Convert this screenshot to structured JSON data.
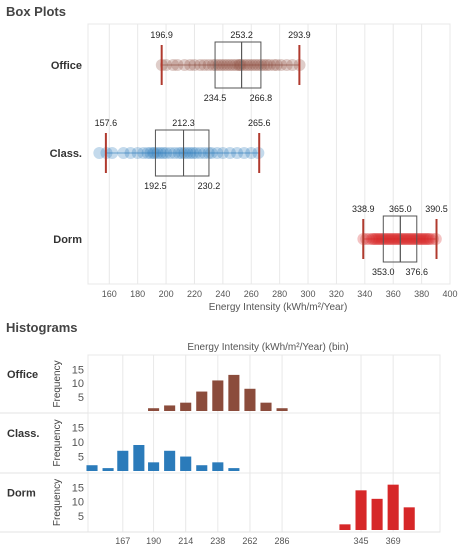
{
  "box_section": {
    "title": "Box Plots",
    "xlabel": "Energy Intensity (kWh/m²/Year)"
  },
  "hist_section": {
    "title": "Histograms",
    "xlabel": "Energy Intensity (kWh/m²/Year) (bin)",
    "ylabel": "Frequency"
  },
  "colors": {
    "Office": "#8b4c3c",
    "Class.": "#2b7bba",
    "Dorm": "#d62728",
    "whisker": "#b03a2e",
    "grid": "#e8e8e8"
  },
  "chart_data": [
    {
      "type": "box",
      "title": "Box Plots",
      "xlabel": "Energy Intensity (kWh/m²/Year)",
      "xlim": [
        145,
        400
      ],
      "xticks": [
        160,
        180,
        200,
        220,
        240,
        260,
        280,
        300,
        320,
        340,
        360,
        380,
        400
      ],
      "series": [
        {
          "name": "Office",
          "min": 196.9,
          "q1": 234.5,
          "median": 253.2,
          "q3": 266.8,
          "max": 293.9,
          "labels": {
            "min": "196.9",
            "q1": "234.5",
            "median": "253.2",
            "q3": "266.8",
            "max": "293.9"
          },
          "points": [
            197,
            200,
            205,
            208,
            213,
            217,
            220,
            224,
            227,
            230,
            233,
            235,
            237,
            239,
            241,
            243,
            245,
            247,
            249,
            251,
            252,
            253,
            255,
            257,
            259,
            261,
            263,
            265,
            267,
            269,
            271,
            273,
            276,
            278,
            281,
            285,
            289,
            294
          ]
        },
        {
          "name": "Class.",
          "min": 157.6,
          "q1": 192.5,
          "median": 212.3,
          "q3": 230.2,
          "max": 265.6,
          "labels": {
            "min": "157.6",
            "q1": "192.5",
            "median": "212.3",
            "q3": "230.2",
            "max": "265.6"
          },
          "points": [
            153,
            158,
            162,
            170,
            175,
            180,
            184,
            187,
            189,
            191,
            192,
            194,
            196,
            198,
            200,
            203,
            206,
            209,
            211,
            213,
            215,
            217,
            219,
            221,
            224,
            227,
            230,
            232,
            236,
            240,
            245,
            250,
            255,
            260,
            265
          ]
        },
        {
          "name": "Dorm",
          "min": 338.9,
          "q1": 353.0,
          "median": 365.0,
          "q3": 376.6,
          "max": 390.5,
          "labels": {
            "min": "338.9",
            "q1": "353.0",
            "median": "365.0",
            "q3": "376.6",
            "max": "390.5"
          },
          "points": [
            339,
            341,
            343,
            345,
            346,
            347,
            348,
            349,
            350,
            351,
            352,
            353,
            354,
            355,
            356,
            357,
            358,
            359,
            360,
            361,
            362,
            363,
            364,
            365,
            366,
            367,
            368,
            369,
            370,
            371,
            372,
            373,
            374,
            375,
            376,
            377,
            378,
            379,
            380,
            381,
            382,
            383,
            384,
            385,
            386,
            388,
            390
          ]
        }
      ]
    },
    {
      "type": "bar",
      "title": "Histograms",
      "xlabel": "Energy Intensity (kWh/m²/Year) (bin)",
      "ylabel": "Frequency",
      "xlim": [
        141,
        404
      ],
      "bin_width": 11.5,
      "xticks": [
        167,
        190,
        214,
        238,
        262,
        286,
        345,
        369
      ],
      "yticks": [
        5,
        10,
        15
      ],
      "ylim": [
        0,
        18
      ],
      "series": [
        {
          "name": "Office",
          "bins": [
            190,
            202,
            214,
            226,
            238,
            250,
            262,
            274,
            286
          ],
          "values": [
            1,
            2,
            3,
            7,
            11,
            13,
            8,
            3,
            1
          ]
        },
        {
          "name": "Class.",
          "bins": [
            144,
            156,
            167,
            179,
            190,
            202,
            214,
            226,
            238,
            250,
            262
          ],
          "values": [
            2,
            1,
            7,
            9,
            3,
            7,
            5,
            2,
            3,
            1,
            0
          ]
        },
        {
          "name": "Dorm",
          "bins": [
            333,
            345,
            357,
            369,
            381,
            393
          ],
          "values": [
            2,
            14,
            11,
            16,
            8,
            0
          ]
        }
      ]
    }
  ]
}
